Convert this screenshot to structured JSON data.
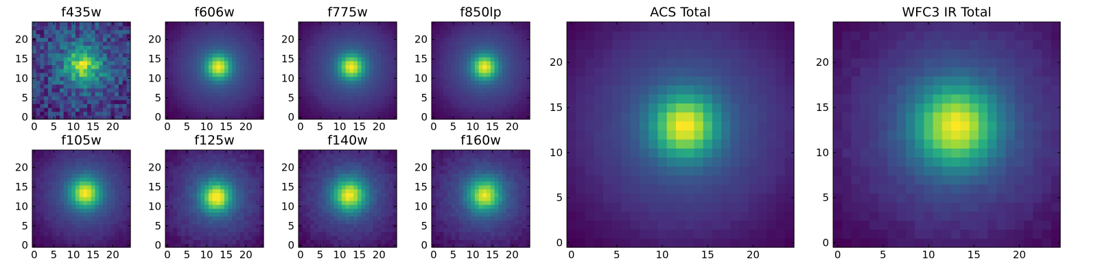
{
  "figure": {
    "colormap": "viridis",
    "colormap_stops": [
      "#440154",
      "#472f7d",
      "#3b518b",
      "#2c718e",
      "#21908d",
      "#27ad81",
      "#5cc863",
      "#aadc32",
      "#fde725"
    ]
  },
  "chart_data": [
    {
      "type": "heatmap",
      "title": "f435w",
      "grid_size": [
        25,
        25
      ],
      "x_range": [
        -0.5,
        24.5
      ],
      "y_range": [
        -0.5,
        24.5
      ],
      "x_ticks": [
        0,
        5,
        10,
        15,
        20
      ],
      "y_ticks": [
        0,
        5,
        10,
        15,
        20
      ],
      "center": [
        12.5,
        13.5
      ],
      "sigma": 3.2,
      "core_peak": 1.0,
      "halo_amplitude": 0.3,
      "halo_sigma": 9,
      "noise": 0.28,
      "seed": 11
    },
    {
      "type": "heatmap",
      "title": "f606w",
      "grid_size": [
        25,
        25
      ],
      "x_range": [
        -0.5,
        24.5
      ],
      "y_range": [
        -0.5,
        24.5
      ],
      "x_ticks": [
        0,
        5,
        10,
        15,
        20
      ],
      "y_ticks": [
        0,
        5,
        10,
        15,
        20
      ],
      "center": [
        13,
        13
      ],
      "sigma": 2.2,
      "core_peak": 0.72,
      "halo_amplitude": 0.36,
      "halo_sigma": 9,
      "noise": 0.01,
      "seed": 2
    },
    {
      "type": "heatmap",
      "title": "f775w",
      "grid_size": [
        25,
        25
      ],
      "x_range": [
        -0.5,
        24.5
      ],
      "y_range": [
        -0.5,
        24.5
      ],
      "x_ticks": [
        0,
        5,
        10,
        15,
        20
      ],
      "y_ticks": [
        0,
        5,
        10,
        15,
        20
      ],
      "center": [
        13,
        13
      ],
      "sigma": 2.2,
      "core_peak": 0.72,
      "halo_amplitude": 0.36,
      "halo_sigma": 9,
      "noise": 0.01,
      "seed": 3
    },
    {
      "type": "heatmap",
      "title": "f850lp",
      "grid_size": [
        25,
        25
      ],
      "x_range": [
        -0.5,
        24.5
      ],
      "y_range": [
        -0.5,
        24.5
      ],
      "x_ticks": [
        0,
        5,
        10,
        15,
        20
      ],
      "y_ticks": [
        0,
        5,
        10,
        15,
        20
      ],
      "center": [
        13,
        13
      ],
      "sigma": 2.2,
      "core_peak": 0.72,
      "halo_amplitude": 0.36,
      "halo_sigma": 9,
      "noise": 0.01,
      "seed": 4
    },
    {
      "type": "heatmap",
      "title": "f105w",
      "grid_size": [
        25,
        25
      ],
      "x_range": [
        -0.5,
        24.5
      ],
      "y_range": [
        -0.5,
        24.5
      ],
      "x_ticks": [
        0,
        5,
        10,
        15,
        20
      ],
      "y_ticks": [
        0,
        5,
        10,
        15,
        20
      ],
      "center": [
        13,
        13.5
      ],
      "sigma": 2.6,
      "core_peak": 0.72,
      "halo_amplitude": 0.36,
      "halo_sigma": 9,
      "noise": 0.02,
      "seed": 5
    },
    {
      "type": "heatmap",
      "title": "f125w",
      "grid_size": [
        25,
        25
      ],
      "x_range": [
        -0.5,
        24.5
      ],
      "y_range": [
        -0.5,
        24.5
      ],
      "x_ticks": [
        0,
        5,
        10,
        15,
        20
      ],
      "y_ticks": [
        0,
        5,
        10,
        15,
        20
      ],
      "center": [
        12.5,
        12.5
      ],
      "sigma": 2.6,
      "core_peak": 0.72,
      "halo_amplitude": 0.36,
      "halo_sigma": 9,
      "noise": 0.03,
      "seed": 6
    },
    {
      "type": "heatmap",
      "title": "f140w",
      "grid_size": [
        25,
        25
      ],
      "x_range": [
        -0.5,
        24.5
      ],
      "y_range": [
        -0.5,
        24.5
      ],
      "x_ticks": [
        0,
        5,
        10,
        15,
        20
      ],
      "y_ticks": [
        0,
        5,
        10,
        15,
        20
      ],
      "center": [
        12.5,
        13
      ],
      "sigma": 2.8,
      "core_peak": 0.72,
      "halo_amplitude": 0.36,
      "halo_sigma": 9,
      "noise": 0.03,
      "seed": 7
    },
    {
      "type": "heatmap",
      "title": "f160w",
      "grid_size": [
        25,
        25
      ],
      "x_range": [
        -0.5,
        24.5
      ],
      "y_range": [
        -0.5,
        24.5
      ],
      "x_ticks": [
        0,
        5,
        10,
        15,
        20
      ],
      "y_ticks": [
        0,
        5,
        10,
        15,
        20
      ],
      "center": [
        13,
        13
      ],
      "sigma": 2.8,
      "core_peak": 0.72,
      "halo_amplitude": 0.36,
      "halo_sigma": 9,
      "noise": 0.03,
      "seed": 8
    },
    {
      "type": "heatmap",
      "title": "ACS Total",
      "grid_size": [
        25,
        25
      ],
      "x_range": [
        -0.5,
        24.5
      ],
      "y_range": [
        -0.5,
        24.5
      ],
      "x_ticks": [
        0,
        5,
        10,
        15,
        20
      ],
      "y_ticks": [
        0,
        5,
        10,
        15,
        20
      ],
      "center": [
        12.5,
        13
      ],
      "sigma": 2.4,
      "core_peak": 0.72,
      "halo_amplitude": 0.36,
      "halo_sigma": 9,
      "noise": 0.01,
      "seed": 9
    },
    {
      "type": "heatmap",
      "title": "WFC3 IR Total",
      "grid_size": [
        25,
        25
      ],
      "x_range": [
        -0.5,
        24.5
      ],
      "y_range": [
        -0.5,
        24.5
      ],
      "x_ticks": [
        0,
        5,
        10,
        15,
        20
      ],
      "y_ticks": [
        0,
        5,
        10,
        15,
        20
      ],
      "center": [
        13,
        13
      ],
      "sigma": 3.0,
      "core_peak": 0.72,
      "halo_amplitude": 0.36,
      "halo_sigma": 9,
      "noise": 0.02,
      "seed": 10
    }
  ]
}
